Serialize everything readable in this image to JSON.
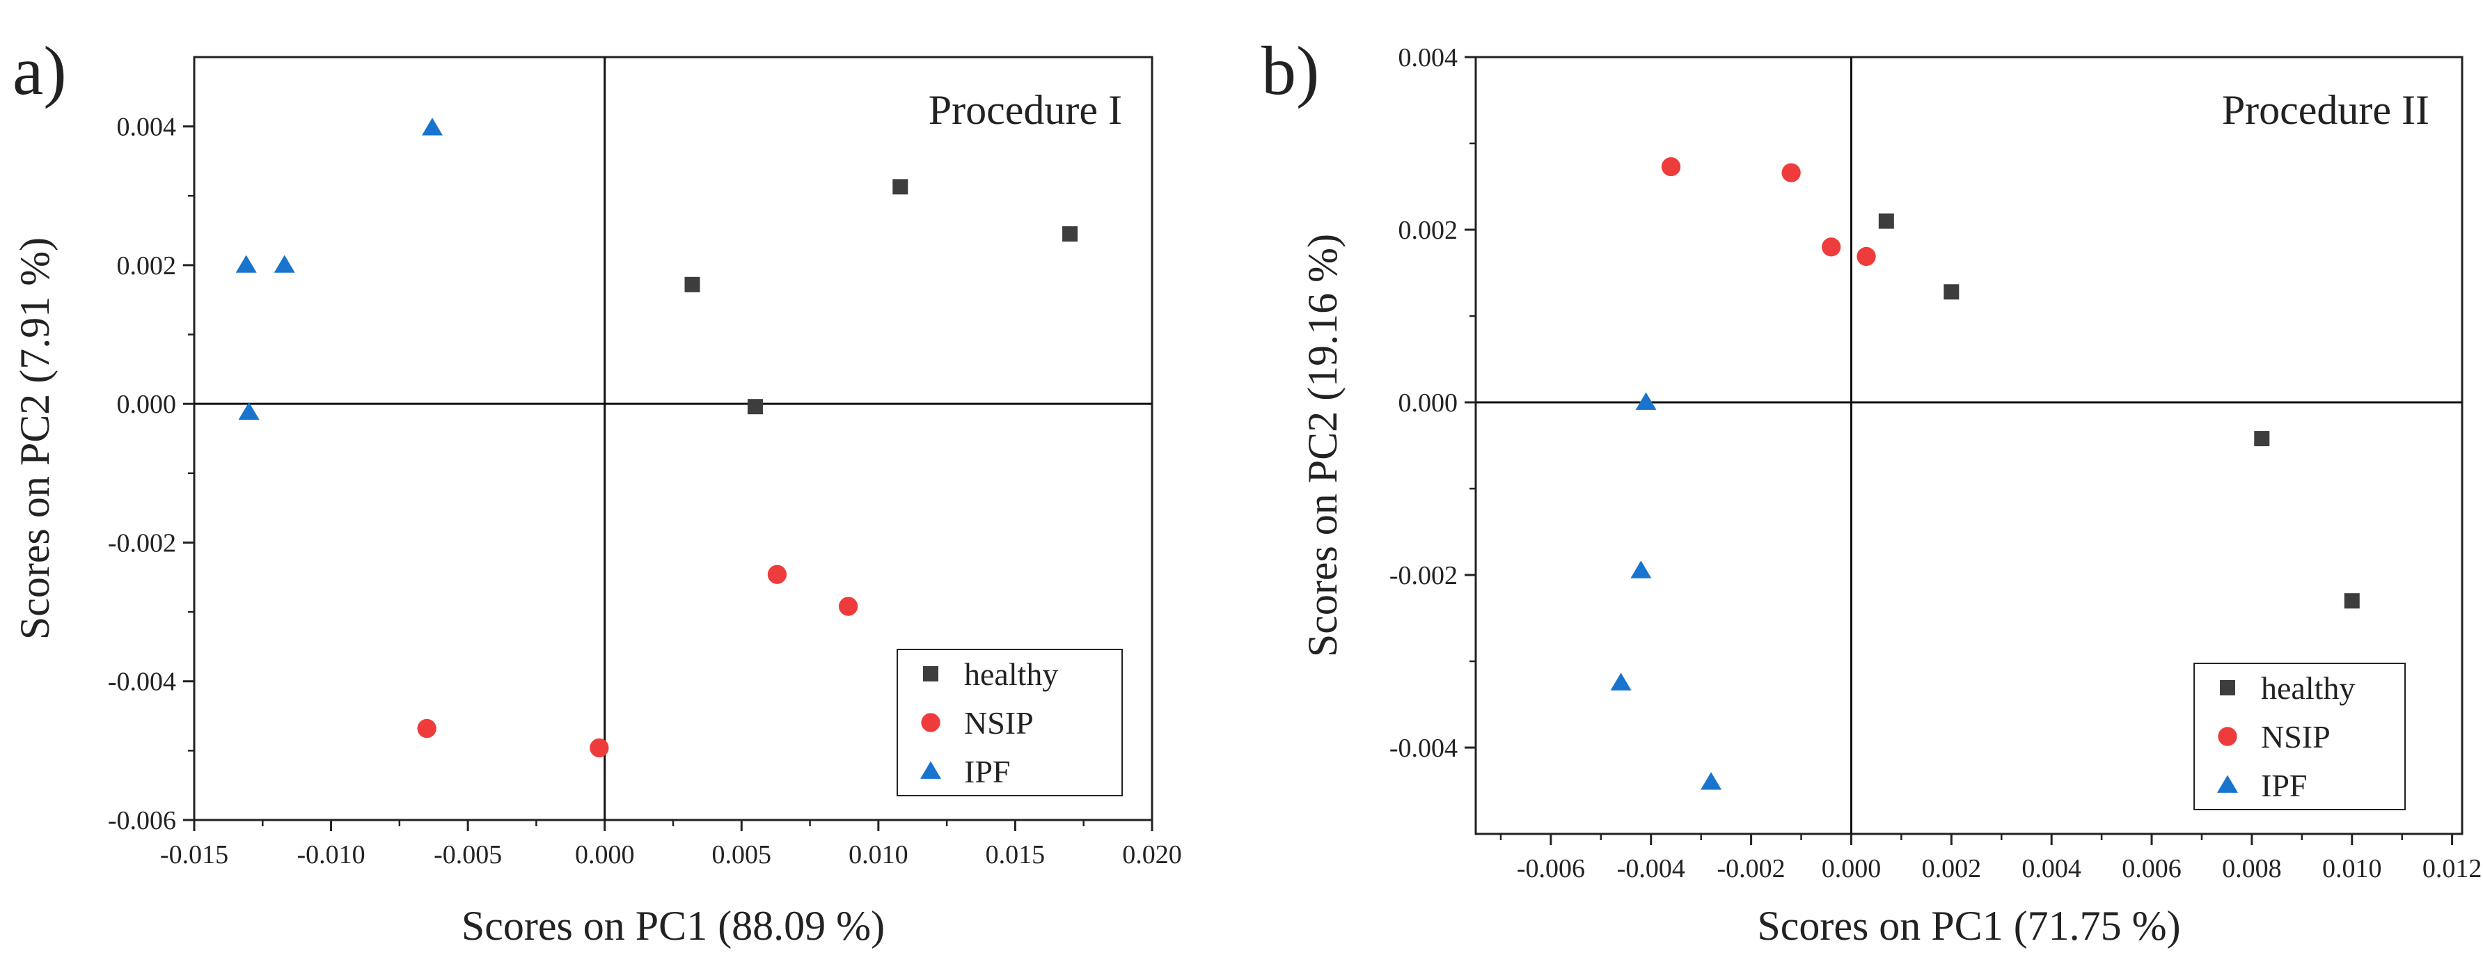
{
  "chart_data": [
    {
      "type": "scatter",
      "panel_label": "a)",
      "title": "Procedure I",
      "xlabel": "Scores on PC1 (88.09 %)",
      "ylabel": "Scores on PC2 (7.91 %)",
      "xlim": [
        -0.015,
        0.02
      ],
      "ylim": [
        -0.006,
        0.005
      ],
      "xticks": [
        -0.015,
        -0.01,
        -0.005,
        0.0,
        0.005,
        0.01,
        0.015,
        0.02
      ],
      "xtick_labels": [
        "-0.015",
        "-0.010",
        "-0.005",
        "0.000",
        "0.005",
        "0.010",
        "0.015",
        "0.020"
      ],
      "yticks": [
        -0.006,
        -0.004,
        -0.002,
        0.0,
        0.002,
        0.004
      ],
      "ytick_labels": [
        "-0.006",
        "-0.004",
        "-0.002",
        "0.000",
        "0.002",
        "0.004"
      ],
      "grid": false,
      "reference_lines": {
        "x": 0,
        "y": 0
      },
      "legend_position": "bottom-right",
      "series": [
        {
          "name": "healthy",
          "marker": "square",
          "color": "#3d3d3d",
          "points": [
            [
              0.0032,
              0.00172
            ],
            [
              0.0055,
              -4e-05
            ],
            [
              0.0108,
              0.00313
            ],
            [
              0.017,
              0.00245
            ]
          ]
        },
        {
          "name": "NSIP",
          "marker": "circle",
          "color": "#ee3b3b",
          "points": [
            [
              0.0063,
              -0.00246
            ],
            [
              0.0089,
              -0.00292
            ],
            [
              -0.0065,
              -0.00468
            ],
            [
              -0.0002,
              -0.00496
            ]
          ]
        },
        {
          "name": "IPF",
          "marker": "triangle",
          "color": "#1874cd",
          "points": [
            [
              -0.0063,
              0.00398
            ],
            [
              -0.0131,
              0.002
            ],
            [
              -0.0117,
              0.002
            ],
            [
              -0.013,
              -0.00012
            ]
          ]
        }
      ]
    },
    {
      "type": "scatter",
      "panel_label": "b)",
      "title": "Procedure II",
      "xlabel": "Scores on PC1 (71.75 %)",
      "ylabel": "Scores on PC2 (19.16 %)",
      "xlim": [
        -0.0075,
        0.0122
      ],
      "ylim": [
        -0.005,
        0.004
      ],
      "xticks": [
        -0.006,
        -0.004,
        -0.002,
        0.0,
        0.002,
        0.004,
        0.006,
        0.008,
        0.01,
        0.012
      ],
      "xtick_labels": [
        "-0.006",
        "-0.004",
        "-0.002",
        "0.000",
        "0.002",
        "0.004",
        "0.006",
        "0.008",
        "0.010",
        "0.012"
      ],
      "yticks": [
        -0.004,
        -0.002,
        0.0,
        0.002,
        0.004
      ],
      "ytick_labels": [
        "-0.004",
        "-0.002",
        "0.000",
        "0.002",
        "0.004"
      ],
      "grid": false,
      "reference_lines": {
        "x": 0,
        "y": 0
      },
      "legend_position": "bottom-right",
      "series": [
        {
          "name": "healthy",
          "marker": "square",
          "color": "#3d3d3d",
          "points": [
            [
              0.0007,
              0.0021
            ],
            [
              0.002,
              0.00128
            ],
            [
              0.0082,
              -0.00042
            ],
            [
              0.01,
              -0.0023
            ]
          ]
        },
        {
          "name": "NSIP",
          "marker": "circle",
          "color": "#ee3b3b",
          "points": [
            [
              -0.0036,
              0.00273
            ],
            [
              -0.0012,
              0.00266
            ],
            [
              -0.0004,
              0.0018
            ],
            [
              0.0003,
              0.00169
            ]
          ]
        },
        {
          "name": "IPF",
          "marker": "triangle",
          "color": "#1874cd",
          "points": [
            [
              -0.0041,
              0.0
            ],
            [
              -0.0042,
              -0.00195
            ],
            [
              -0.0046,
              -0.00325
            ],
            [
              -0.0028,
              -0.0044
            ]
          ]
        }
      ]
    }
  ]
}
